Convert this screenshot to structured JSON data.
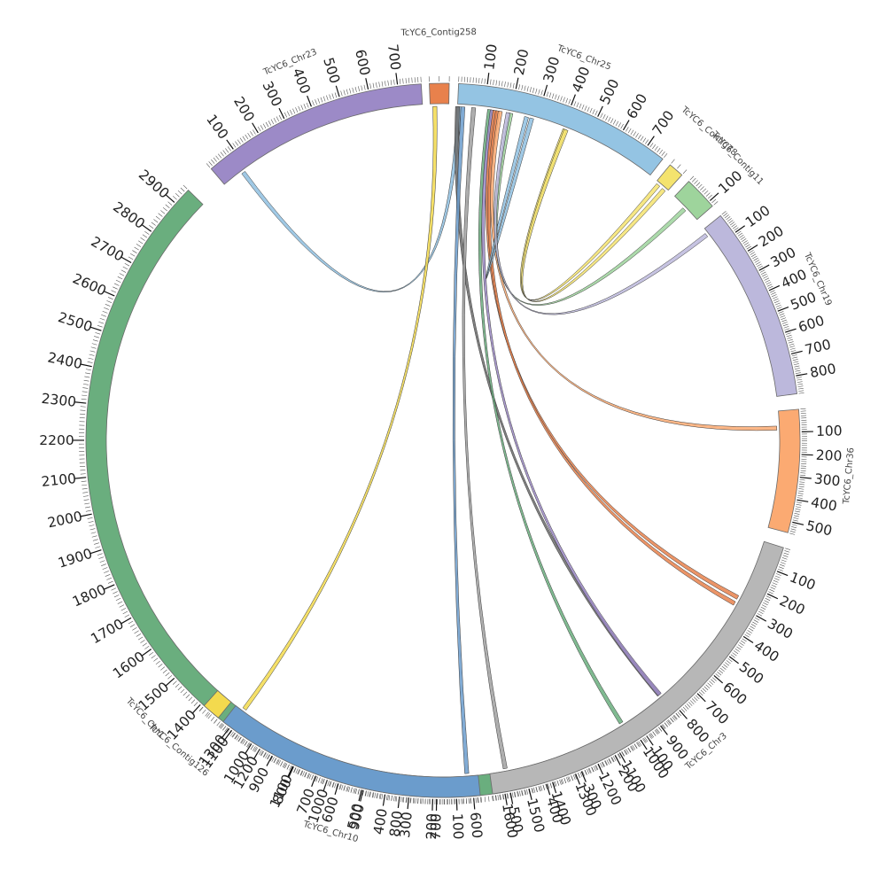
{
  "diagram": {
    "type": "circos",
    "segments": [
      {
        "name": "TcYC6_Chr1",
        "length": 2950,
        "color": "#6aae7e",
        "start_deg": 139.5,
        "end_deg": 314.5,
        "ticks": [
          100,
          200,
          300,
          400,
          500,
          600,
          700,
          800,
          900,
          1000,
          1100,
          1200,
          1300,
          1400,
          1500,
          1600,
          1700,
          1800,
          1900,
          2000,
          2100,
          2200,
          2300,
          2400,
          2500,
          2600,
          2700,
          2800,
          2900
        ]
      },
      {
        "name": "TcYC6_Chr23",
        "length": 780,
        "color": "#9c8ac7",
        "start_deg": 319.5,
        "end_deg": 356.5,
        "ticks": [
          100,
          200,
          300,
          400,
          500,
          600,
          700
        ]
      },
      {
        "name": "TcYC6_Contig258",
        "length": 20,
        "color": "#e8814c",
        "start_deg": 357.8,
        "end_deg": 361.0,
        "ticks": []
      },
      {
        "name": "TcYC6_Chr25",
        "length": 770,
        "color": "#94c4e3",
        "start_deg": 362.5,
        "end_deg": 398.0,
        "ticks": [
          100,
          200,
          300,
          400,
          500,
          600,
          700
        ]
      },
      {
        "name": "TcYC6_Contig78",
        "length": 20,
        "color": "#f4e36e",
        "start_deg": 399.5,
        "end_deg": 402.0,
        "ticks": []
      },
      {
        "name": "TcYC6_Contig11",
        "length": 120,
        "color": "#9ed49c",
        "start_deg": 403.5,
        "end_deg": 409.0,
        "ticks": [
          100
        ]
      },
      {
        "name": "TcYC6_Chr19",
        "length": 880,
        "color": "#bcb8dc",
        "start_deg": 411.0,
        "end_deg": 442.5,
        "ticks": [
          100,
          200,
          300,
          400,
          500,
          600,
          700,
          800
        ]
      },
      {
        "name": "TcYC6_Chr36",
        "length": 550,
        "color": "#fbaa72",
        "start_deg": 445.0,
        "end_deg": 465.0,
        "ticks": [
          100,
          200,
          300,
          400,
          500
        ]
      },
      {
        "name": "TcYC6_Chr3",
        "length": 1650,
        "color": "#b7b7b7",
        "start_deg": 467.5,
        "end_deg": 532.0,
        "ticks": [
          100,
          200,
          300,
          400,
          500,
          600,
          700,
          800,
          900,
          1000,
          1100,
          1200,
          1300,
          1400,
          1500,
          1600
        ]
      },
      {
        "name": "TcYC6_Chr10",
        "length": 1150,
        "color": "#6b9ccc",
        "start_deg": 534.0,
        "end_deg": 578.0,
        "ticks": [
          100,
          200,
          300,
          400,
          500,
          600,
          700,
          800,
          900,
          1000,
          1100
        ]
      },
      {
        "name": "TcYC6_Contig126",
        "length": 20,
        "color": "#f3da4e",
        "start_deg": 579.0,
        "end_deg": 582.0,
        "ticks": []
      }
    ],
    "links": [
      {
        "from": "TcYC6_Chr23",
        "from_pos": 80,
        "to": "TcYC6_Chr25",
        "to_pos": 5,
        "color": "#8fc0e0"
      },
      {
        "from": "TcYC6_Contig258",
        "from_pos": 5,
        "to": "TcYC6_Chr10",
        "to_pos": 1110,
        "color": "#f3da4e"
      },
      {
        "from": "TcYC6_Chr25",
        "from_pos": 0,
        "to": "TcYC6_Chr1",
        "to_pos": 3,
        "color": "#6b6b6b"
      },
      {
        "from": "TcYC6_Chr25",
        "from_pos": 20,
        "to": "TcYC6_Chr10",
        "to_pos": 50,
        "color": "#6b9ccc"
      },
      {
        "from": "TcYC6_Chr25",
        "from_pos": 60,
        "to": "TcYC6_Chr3",
        "to_pos": 1580,
        "color": "#a0a0a0"
      },
      {
        "from": "TcYC6_Chr25",
        "from_pos": 120,
        "to": "TcYC6_Chr3",
        "to_pos": 1030,
        "color": "#6aae7e"
      },
      {
        "from": "TcYC6_Chr25",
        "from_pos": 130,
        "to": "TcYC6_Chr3",
        "to_pos": 820,
        "color": "#9c8ac7"
      },
      {
        "from": "TcYC6_Chr25",
        "from_pos": 140,
        "to": "TcYC6_Chr3",
        "to_pos": 270,
        "color": "#e8814c"
      },
      {
        "from": "TcYC6_Chr25",
        "from_pos": 150,
        "to": "TcYC6_Chr3",
        "to_pos": 300,
        "color": "#e8814c"
      },
      {
        "from": "TcYC6_Chr25",
        "from_pos": 160,
        "to": "TcYC6_Chr36",
        "to_pos": 80,
        "color": "#fbaa72"
      },
      {
        "from": "TcYC6_Chr25",
        "from_pos": 260,
        "to": "TcYC6_Chr25",
        "to_pos": 280,
        "color": "#8fc0e0"
      },
      {
        "from": "TcYC6_Contig78",
        "from_pos": 5,
        "to": "TcYC6_Chr25",
        "to_pos": 410,
        "color": "#f4e36e"
      },
      {
        "from": "TcYC6_Contig78",
        "from_pos": 15,
        "to": "TcYC6_Chr25",
        "to_pos": 415,
        "color": "#f4e36e"
      },
      {
        "from": "TcYC6_Contig11",
        "from_pos": 60,
        "to": "TcYC6_Chr25",
        "to_pos": 200,
        "color": "#9ed49c"
      },
      {
        "from": "TcYC6_Chr19",
        "from_pos": 30,
        "to": "TcYC6_Chr25",
        "to_pos": 190,
        "color": "#bcb8dc"
      }
    ]
  }
}
